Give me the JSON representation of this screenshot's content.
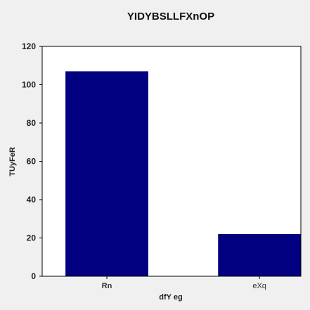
{
  "chart_data": {
    "type": "bar",
    "title": "YIDYBSLLFXnOP",
    "xlabel": "dfY  eg",
    "ylabel": "TUyFeR",
    "categories": [
      "Rn",
      "eXq"
    ],
    "category_bold": [
      true,
      false
    ],
    "values": [
      107,
      22
    ],
    "ylim": [
      0,
      120
    ],
    "yticks": [
      0,
      20,
      40,
      60,
      80,
      100,
      120
    ],
    "grid": false,
    "bar_color": "#000080",
    "plot_background": "#ffffff",
    "frame_color": "#000000"
  }
}
